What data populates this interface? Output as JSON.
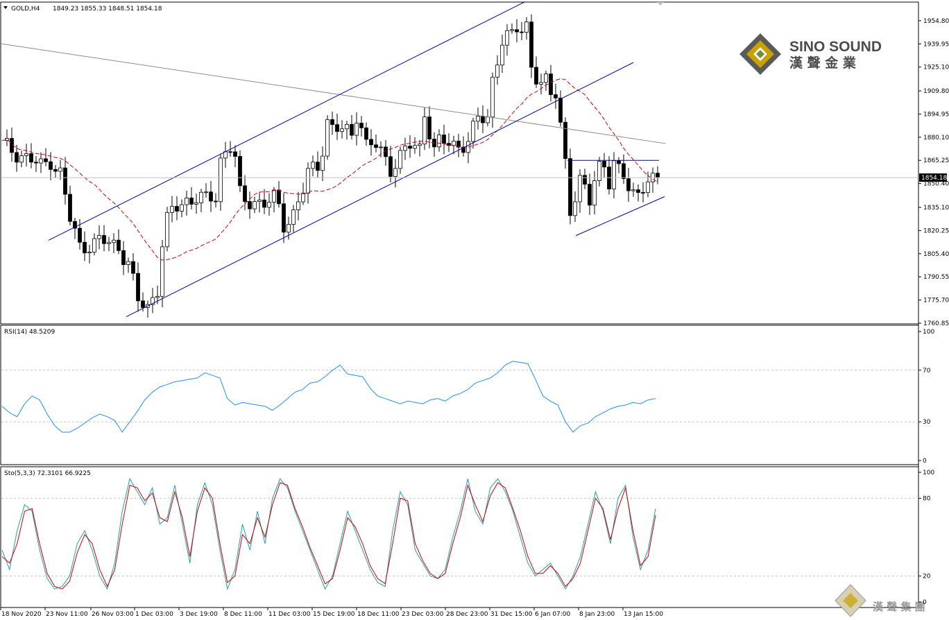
{
  "header": {
    "symbol": "GOLD,H4",
    "ohlc": "1849.23 1855.33 1848.51 1854.18"
  },
  "brand": {
    "name_en": "SINO SOUND",
    "name_zh": "漢 聲 金 業",
    "watermark_zh": "漢 聲 集 團"
  },
  "colors": {
    "bull_candle": "#000000",
    "bear_candle": "#000000",
    "ma_line": "#cc0000",
    "channel_lines": "#0000aa",
    "trend_gray": "#8c8c8c",
    "rsi_line": "#1e90ff",
    "sto_main": "#20a0b0",
    "sto_signal": "#cc0000",
    "logo_gold": "#c8a200",
    "logo_dark": "#5a5a5a"
  },
  "chart_data": [
    {
      "type": "candlestick",
      "title": "GOLD,H4",
      "ohlc_last": {
        "open": 1849.23,
        "high": 1855.33,
        "low": 1848.51,
        "close": 1854.18
      },
      "current_price_label": "1854.18",
      "ylim": [
        1760.85,
        1966.3
      ],
      "y_ticks": [
        "1954.80",
        "1939.95",
        "1925.10",
        "1909.80",
        "1894.95",
        "1880.10",
        "1865.25",
        "1850.40",
        "1835.10",
        "1820.25",
        "1805.40",
        "1790.55",
        "1775.70",
        "1760.85"
      ],
      "x_ticks": [
        "18 Nov 2020",
        "23 Nov 11:00",
        "26 Nov 03:00",
        "1 Dec 03:00",
        "3 Dec 19:00",
        "8 Dec 11:00",
        "11 Dec 03:00",
        "15 Dec 19:00",
        "18 Dec 11:00",
        "23 Dec 03:00",
        "28 Dec 23:00",
        "31 Dec 15:00",
        "6 Jan 07:00",
        "8 Jan 23:00",
        "13 Jan 15:00"
      ],
      "close_path": [
        [
          0,
          1875
        ],
        [
          4,
          1869
        ],
        [
          8,
          1861
        ],
        [
          10,
          1866
        ],
        [
          12,
          1857
        ],
        [
          14,
          1827
        ],
        [
          16,
          1810
        ],
        [
          18,
          1812
        ],
        [
          20,
          1813
        ],
        [
          22,
          1812
        ],
        [
          24,
          1810
        ],
        [
          26,
          1800
        ],
        [
          28,
          1774
        ],
        [
          30,
          1771
        ],
        [
          32,
          1784
        ],
        [
          33,
          1812
        ],
        [
          34,
          1826
        ],
        [
          35,
          1832
        ],
        [
          36,
          1835
        ],
        [
          38,
          1840
        ],
        [
          40,
          1842
        ],
        [
          42,
          1839
        ],
        [
          44,
          1842
        ],
        [
          45,
          1866
        ],
        [
          46,
          1872
        ],
        [
          47,
          1875
        ],
        [
          48,
          1866
        ],
        [
          49,
          1842
        ],
        [
          50,
          1838
        ],
        [
          52,
          1840
        ],
        [
          54,
          1838
        ],
        [
          56,
          1840
        ],
        [
          57,
          1834
        ],
        [
          58,
          1824
        ],
        [
          60,
          1832
        ],
        [
          62,
          1846
        ],
        [
          63,
          1856
        ],
        [
          65,
          1862
        ],
        [
          66,
          1874
        ],
        [
          67,
          1891
        ],
        [
          68,
          1886
        ],
        [
          70,
          1884
        ],
        [
          72,
          1882
        ],
        [
          73,
          1896
        ],
        [
          74,
          1888
        ],
        [
          75,
          1875
        ],
        [
          77,
          1874
        ],
        [
          79,
          1866
        ],
        [
          80,
          1861
        ],
        [
          82,
          1868
        ],
        [
          84,
          1874
        ],
        [
          86,
          1873
        ],
        [
          87,
          1897
        ],
        [
          88,
          1885
        ],
        [
          89,
          1872
        ],
        [
          90,
          1876
        ],
        [
          92,
          1876
        ],
        [
          94,
          1875
        ],
        [
          96,
          1878
        ],
        [
          97,
          1884
        ],
        [
          98,
          1891
        ],
        [
          100,
          1893
        ],
        [
          101,
          1918
        ],
        [
          102,
          1931
        ],
        [
          103,
          1942
        ],
        [
          105,
          1944
        ],
        [
          106,
          1950
        ],
        [
          107,
          1950
        ],
        [
          108,
          1953
        ],
        [
          109,
          1927
        ],
        [
          110,
          1918
        ],
        [
          111,
          1912
        ],
        [
          112,
          1914
        ],
        [
          113,
          1908
        ],
        [
          114,
          1910
        ],
        [
          115,
          1890
        ],
        [
          116,
          1866
        ],
        [
          117,
          1833
        ],
        [
          118,
          1838
        ],
        [
          119,
          1849
        ],
        [
          120,
          1848
        ],
        [
          121,
          1842
        ],
        [
          122,
          1855
        ],
        [
          123,
          1863
        ],
        [
          124,
          1862
        ],
        [
          125,
          1848
        ],
        [
          126,
          1860
        ],
        [
          128,
          1858
        ],
        [
          129,
          1851
        ],
        [
          130,
          1845
        ],
        [
          131,
          1843
        ],
        [
          132,
          1846
        ],
        [
          133,
          1849
        ],
        [
          134,
          1852
        ],
        [
          135,
          1854.18
        ]
      ],
      "series": [
        {
          "name": "GOLD,H4",
          "kind": "candles"
        },
        {
          "kind": "moving-average"
        }
      ]
    },
    {
      "type": "line",
      "title": "RSI(14) 48.5209",
      "ylim": [
        0,
        100
      ],
      "y_ticks": [
        "100",
        "70",
        "30",
        "0"
      ],
      "levels": [
        70,
        30
      ],
      "series": [
        {
          "name": "RSI(14)",
          "current": 48.5209,
          "values": [
            42,
            37,
            34,
            44,
            50,
            47,
            36,
            27,
            22,
            22,
            25,
            29,
            33,
            36,
            34,
            31,
            22,
            30,
            38,
            47,
            53,
            57,
            59,
            61,
            62,
            63,
            64,
            68,
            66,
            64,
            48,
            43,
            45,
            44,
            43,
            42,
            39,
            43,
            48,
            53,
            55,
            60,
            61,
            65,
            70,
            74,
            67,
            66,
            65,
            56,
            50,
            48,
            46,
            44,
            46,
            45,
            44,
            47,
            48,
            46,
            50,
            52,
            55,
            60,
            62,
            64,
            68,
            74,
            77,
            76,
            75,
            63,
            50,
            46,
            43,
            30,
            22,
            27,
            29,
            34,
            37,
            40,
            42,
            43,
            45,
            44,
            47,
            48
          ]
        }
      ]
    },
    {
      "type": "line",
      "title": "Sto(5,3,3) 72.3101 66.9225",
      "ylim": [
        0,
        100
      ],
      "y_ticks": [
        "100",
        "80",
        "20",
        "0"
      ],
      "levels": [
        80,
        20
      ],
      "series": [
        {
          "name": "Sto main",
          "current": 72.3101,
          "values": [
            40,
            25,
            55,
            75,
            70,
            40,
            18,
            10,
            12,
            20,
            45,
            55,
            40,
            20,
            10,
            30,
            70,
            95,
            85,
            75,
            88,
            60,
            65,
            90,
            60,
            30,
            75,
            92,
            75,
            40,
            10,
            25,
            60,
            40,
            70,
            45,
            80,
            95,
            88,
            70,
            55,
            40,
            25,
            10,
            20,
            45,
            70,
            55,
            40,
            25,
            15,
            12,
            55,
            85,
            75,
            40,
            30,
            20,
            18,
            25,
            50,
            70,
            95,
            70,
            60,
            88,
            95,
            85,
            70,
            50,
            30,
            20,
            25,
            30,
            20,
            10,
            20,
            35,
            60,
            85,
            70,
            45,
            80,
            90,
            50,
            25,
            40,
            72
          ]
        },
        {
          "name": "Sto signal",
          "current": 66.9225,
          "values": [
            35,
            30,
            45,
            70,
            72,
            45,
            22,
            12,
            10,
            16,
            38,
            52,
            45,
            25,
            12,
            25,
            60,
            90,
            88,
            78,
            84,
            65,
            62,
            85,
            65,
            35,
            70,
            88,
            80,
            45,
            15,
            20,
            52,
            45,
            65,
            50,
            75,
            92,
            90,
            72,
            58,
            42,
            28,
            14,
            18,
            40,
            65,
            58,
            45,
            28,
            18,
            14,
            45,
            80,
            78,
            45,
            32,
            22,
            18,
            22,
            45,
            65,
            90,
            75,
            62,
            82,
            92,
            88,
            72,
            55,
            35,
            22,
            22,
            28,
            22,
            12,
            18,
            30,
            55,
            80,
            72,
            48,
            72,
            88,
            55,
            28,
            35,
            67
          ]
        }
      ]
    }
  ]
}
